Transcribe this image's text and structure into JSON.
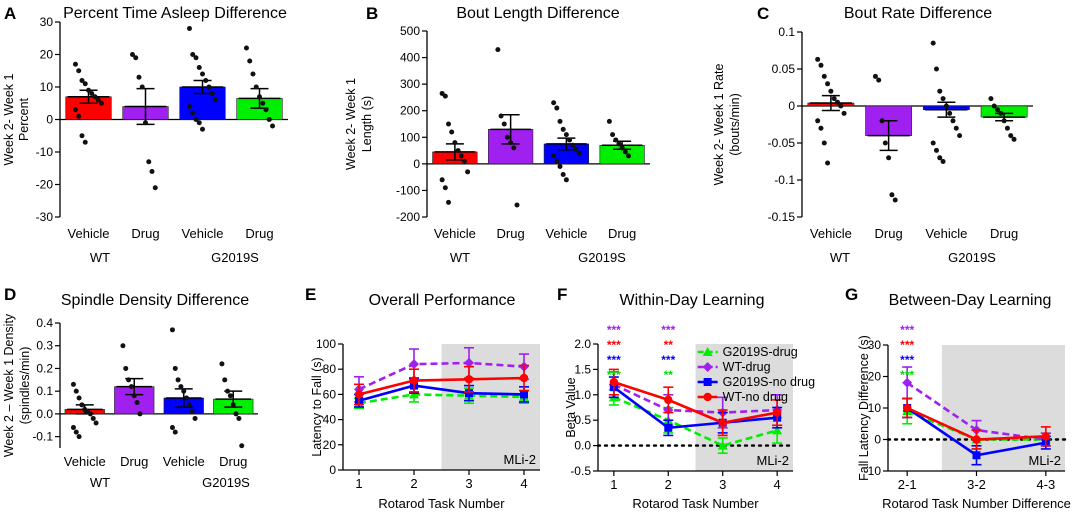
{
  "figure": {
    "colors": {
      "wt_vehicle": "#ff0000",
      "wt_drug": "#a020f0",
      "g2019s_vehicle": "#0000ff",
      "g2019s_drug": "#00ee00",
      "shade": "#dcdcdc",
      "star_green": "#00dd00"
    }
  },
  "chart_data": [
    {
      "id": "A",
      "type": "bar",
      "panel_label": "A",
      "title": "Percent Time Asleep Difference",
      "ylabel": [
        "Week 2- Week 1",
        "Percent"
      ],
      "ylim": [
        -30,
        30
      ],
      "yticks": [
        -30,
        -20,
        -10,
        0,
        10,
        20,
        30
      ],
      "categories": [
        "Vehicle",
        "Drug",
        "Vehicle",
        "Drug"
      ],
      "groups": [
        "WT",
        "G2019S"
      ],
      "values": [
        7.0,
        4.0,
        10.0,
        6.5
      ],
      "errors": [
        2.0,
        5.5,
        2.0,
        3.0
      ],
      "points": [
        [
          17,
          15,
          12,
          11,
          9,
          8,
          7,
          6,
          5,
          3,
          1,
          -5,
          -7
        ],
        [
          20,
          19,
          13,
          10,
          -1,
          -13,
          -16,
          -21
        ],
        [
          28,
          20,
          19,
          16,
          14,
          12,
          10,
          8,
          6,
          4,
          2,
          0,
          -1,
          -3
        ],
        [
          22,
          18,
          14,
          10,
          7,
          5,
          3,
          0,
          -2
        ]
      ]
    },
    {
      "id": "B",
      "type": "bar",
      "panel_label": "B",
      "title": "Bout Length Difference",
      "ylabel": [
        "Week 2- Week 1",
        "Length (s)"
      ],
      "ylim": [
        -200,
        500
      ],
      "yticks": [
        -200,
        -100,
        0,
        100,
        200,
        300,
        400,
        500
      ],
      "categories": [
        "Vehicle",
        "Drug",
        "Vehicle",
        "Drug"
      ],
      "groups": [
        "WT",
        "G2019S"
      ],
      "values": [
        45,
        130,
        75,
        70
      ],
      "errors": [
        30,
        55,
        22,
        15
      ],
      "points": [
        [
          265,
          255,
          150,
          120,
          80,
          50,
          30,
          10,
          -30,
          -60,
          -90,
          -145
        ],
        [
          430,
          180,
          150,
          100,
          80,
          60,
          -155
        ],
        [
          230,
          210,
          160,
          130,
          110,
          90,
          70,
          55,
          40,
          30,
          10,
          -10,
          -40,
          -60
        ],
        [
          160,
          110,
          90,
          75,
          60,
          45,
          30
        ]
      ]
    },
    {
      "id": "C",
      "type": "bar",
      "panel_label": "C",
      "title": "Bout Rate Difference",
      "ylabel": [
        "Week 2- Week 1 Rate",
        "(bouts/min)"
      ],
      "ylim": [
        -0.15,
        0.1
      ],
      "yticks": [
        -0.15,
        -0.1,
        -0.05,
        0,
        0.05,
        0.1
      ],
      "ytick_labels": [
        "-0.15",
        "-0.1",
        "-0.05",
        "0",
        "0.05",
        "0.1"
      ],
      "categories": [
        "Vehicle",
        "Drug",
        "Vehicle",
        "Drug"
      ],
      "groups": [
        "WT",
        "G2019S"
      ],
      "values": [
        0.004,
        -0.04,
        -0.005,
        -0.015
      ],
      "errors": [
        0.01,
        0.02,
        0.01,
        0.005
      ],
      "points": [
        [
          0.063,
          0.055,
          0.04,
          0.03,
          0.02,
          0.01,
          0.005,
          0.0,
          -0.01,
          -0.02,
          -0.03,
          -0.05,
          -0.077
        ],
        [
          0.04,
          0.035,
          -0.02,
          -0.05,
          -0.07,
          -0.12,
          -0.127
        ],
        [
          0.085,
          0.05,
          0.02,
          0.01,
          0.0,
          -0.01,
          -0.02,
          -0.03,
          -0.04,
          -0.05,
          -0.06,
          -0.07,
          -0.075
        ],
        [
          0.01,
          0.0,
          -0.005,
          -0.01,
          -0.02,
          -0.03,
          -0.04,
          -0.045
        ]
      ]
    },
    {
      "id": "D",
      "type": "bar",
      "panel_label": "D",
      "title": "Spindle Density Difference",
      "ylabel": [
        "Week 2 – Week 1 Density",
        "(spindles/min)"
      ],
      "ylim": [
        -0.15,
        0.4
      ],
      "yticks": [
        -0.1,
        0,
        0.1,
        0.2,
        0.3,
        0.4
      ],
      "ytick_labels": [
        "-0.1",
        "0.0",
        "0.1",
        "0.2",
        "0.3",
        "0.4"
      ],
      "categories": [
        "Vehicle",
        "Drug",
        "Vehicle",
        "Drug"
      ],
      "groups": [
        "WT",
        "G2019S"
      ],
      "values": [
        0.02,
        0.12,
        0.07,
        0.065
      ],
      "errors": [
        0.02,
        0.035,
        0.04,
        0.035
      ],
      "points": [
        [
          0.13,
          0.1,
          0.07,
          0.04,
          0.02,
          0.01,
          0.0,
          -0.02,
          -0.04,
          -0.06,
          -0.08,
          -0.1
        ],
        [
          0.3,
          0.2,
          0.15,
          0.12,
          0.08,
          0.05,
          0.0
        ],
        [
          0.37,
          0.2,
          0.15,
          0.12,
          0.1,
          0.07,
          0.04,
          0.01,
          -0.02,
          -0.06,
          -0.08
        ],
        [
          0.22,
          0.15,
          0.1,
          0.08,
          0.04,
          0.0,
          -0.02,
          -0.14
        ]
      ]
    },
    {
      "id": "E",
      "type": "line",
      "panel_label": "E",
      "title": "Overall Performance",
      "ylabel": [
        "Latency to Fall (s)"
      ],
      "xlabel": "Rotarod Task Number",
      "x": [
        "1",
        "2",
        "3",
        "4"
      ],
      "ylim": [
        0,
        100
      ],
      "yticks": [
        0,
        20,
        40,
        60,
        80,
        100
      ],
      "shade_from_index": 1.5,
      "shade_label": "MLi-2",
      "series": [
        {
          "name": "G2019S-drug",
          "color_key": "g2019s_drug",
          "dash": true,
          "marker": "triangle",
          "values": [
            53,
            60,
            59,
            58
          ],
          "errors": [
            4,
            6,
            6,
            5
          ]
        },
        {
          "name": "WT-drug",
          "color_key": "wt_drug",
          "dash": true,
          "marker": "diamond",
          "values": [
            64,
            84,
            85,
            82
          ],
          "errors": [
            10,
            12,
            12,
            10
          ]
        },
        {
          "name": "G2019S-no drug",
          "color_key": "g2019s_vehicle",
          "dash": false,
          "marker": "square",
          "values": [
            55,
            67,
            61,
            60
          ],
          "errors": [
            5,
            6,
            6,
            6
          ]
        },
        {
          "name": "WT-no drug",
          "color_key": "wt_vehicle",
          "dash": false,
          "marker": "circle",
          "values": [
            60,
            71,
            72,
            73
          ],
          "errors": [
            8,
            9,
            10,
            10
          ]
        }
      ]
    },
    {
      "id": "F",
      "type": "line",
      "panel_label": "F",
      "title": "Within-Day Learning",
      "ylabel": [
        "Beta Value"
      ],
      "xlabel": "Rotarod Task Number",
      "x": [
        "1",
        "2",
        "3",
        "4"
      ],
      "ylim": [
        -0.5,
        2.0
      ],
      "yticks": [
        -0.5,
        0,
        0.5,
        1.0,
        1.5,
        2.0
      ],
      "ytick_labels": [
        "-0.5",
        "0.0",
        "0.5",
        "1.0",
        "1.5",
        "2.0"
      ],
      "zero_line": true,
      "shade_from_index": 1.5,
      "shade_label": "MLi-2",
      "legend": [
        "G2019S-drug",
        "WT-drug",
        "G2019S-no drug",
        "WT-no drug"
      ],
      "stars": [
        {
          "x_index": 0,
          "rows": [
            {
              "text": "***",
              "color_key": "wt_drug"
            },
            {
              "text": "***",
              "color_key": "wt_vehicle"
            },
            {
              "text": "***",
              "color_key": "g2019s_vehicle"
            },
            {
              "text": "***",
              "color_key": "star_green"
            }
          ]
        },
        {
          "x_index": 1,
          "rows": [
            {
              "text": "***",
              "color_key": "wt_drug"
            },
            {
              "text": "**",
              "color_key": "wt_vehicle"
            },
            {
              "text": "***",
              "color_key": "g2019s_vehicle"
            },
            {
              "text": "**",
              "color_key": "star_green"
            }
          ]
        }
      ],
      "series": [
        {
          "name": "G2019S-drug",
          "color_key": "g2019s_drug",
          "dash": true,
          "marker": "triangle",
          "values": [
            0.95,
            0.5,
            0.0,
            0.3
          ],
          "errors": [
            0.15,
            0.25,
            0.15,
            0.25
          ]
        },
        {
          "name": "WT-drug",
          "color_key": "wt_drug",
          "dash": true,
          "marker": "diamond",
          "values": [
            1.2,
            0.7,
            0.65,
            0.7
          ],
          "errors": [
            0.25,
            0.3,
            0.3,
            0.3
          ]
        },
        {
          "name": "G2019S-no drug",
          "color_key": "g2019s_vehicle",
          "dash": false,
          "marker": "square",
          "values": [
            1.15,
            0.35,
            0.45,
            0.55
          ],
          "errors": [
            0.2,
            0.15,
            0.2,
            0.2
          ]
        },
        {
          "name": "WT-no drug",
          "color_key": "wt_vehicle",
          "dash": false,
          "marker": "circle",
          "values": [
            1.25,
            0.9,
            0.45,
            0.65
          ],
          "errors": [
            0.25,
            0.25,
            0.25,
            0.25
          ]
        }
      ]
    },
    {
      "id": "G",
      "type": "line",
      "panel_label": "G",
      "title": "Between-Day Learning",
      "ylabel": [
        "Fall Latency Difference (s)"
      ],
      "xlabel": "Rotarod Task Number Difference",
      "x": [
        "2-1",
        "3-2",
        "4-3"
      ],
      "ylim": [
        -10,
        30
      ],
      "yticks": [
        -10,
        0,
        10,
        20,
        30
      ],
      "zero_line": true,
      "shade_from_index": 0.5,
      "shade_label": "MLi-2",
      "stars": [
        {
          "x_index": 0,
          "rows": [
            {
              "text": "***",
              "color_key": "wt_drug"
            },
            {
              "text": "***",
              "color_key": "wt_vehicle"
            },
            {
              "text": "***",
              "color_key": "g2019s_vehicle"
            },
            {
              "text": "***",
              "color_key": "star_green"
            }
          ]
        }
      ],
      "series": [
        {
          "name": "G2019S-drug",
          "color_key": "g2019s_drug",
          "dash": true,
          "marker": "triangle",
          "values": [
            9,
            0,
            0
          ],
          "errors": [
            4,
            3,
            2
          ]
        },
        {
          "name": "WT-drug",
          "color_key": "wt_drug",
          "dash": true,
          "marker": "diamond",
          "values": [
            18,
            3,
            0
          ],
          "errors": [
            5,
            3,
            2
          ]
        },
        {
          "name": "G2019S-no drug",
          "color_key": "g2019s_vehicle",
          "dash": false,
          "marker": "square",
          "values": [
            10,
            -5,
            -1
          ],
          "errors": [
            3,
            3,
            2
          ]
        },
        {
          "name": "WT-no drug",
          "color_key": "wt_vehicle",
          "dash": false,
          "marker": "circle",
          "values": [
            10,
            0,
            1
          ],
          "errors": [
            3,
            3,
            3
          ]
        }
      ]
    }
  ]
}
